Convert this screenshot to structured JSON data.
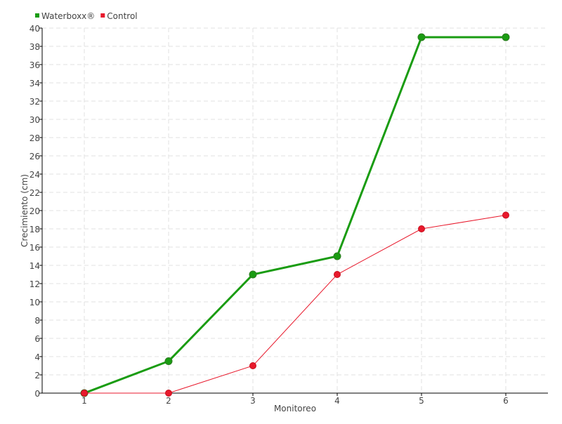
{
  "chart_data": {
    "type": "line",
    "title": "",
    "xlabel": "Monitoreo",
    "ylabel": "Crecimiento (cm)",
    "x": [
      1,
      2,
      3,
      4,
      5,
      6
    ],
    "xticks": [
      "1",
      "2",
      "3",
      "4",
      "5",
      "6"
    ],
    "xlim": [
      0.5,
      6.5
    ],
    "ylim": [
      0,
      40
    ],
    "yticks": [
      0,
      2,
      4,
      6,
      8,
      10,
      12,
      14,
      16,
      18,
      20,
      22,
      24,
      26,
      28,
      30,
      32,
      34,
      36,
      38,
      40
    ],
    "grid": true,
    "legend_placement": "top-left",
    "series": [
      {
        "name": "Waterboxx®",
        "color": "#1a9c12",
        "values": [
          0,
          3.5,
          13,
          15,
          39,
          39
        ]
      },
      {
        "name": "Control",
        "color": "#e8192c",
        "values": [
          0,
          0,
          3,
          13,
          18,
          19.5
        ]
      }
    ]
  }
}
